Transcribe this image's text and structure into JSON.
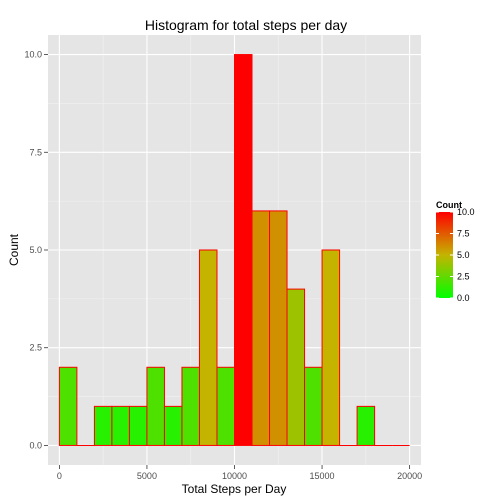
{
  "chart_data": {
    "type": "bar",
    "title": "Histogram for total steps per day",
    "xlabel": "Total Steps per Day",
    "ylabel": "Count",
    "xlim": [
      -650,
      20650
    ],
    "ylim": [
      -0.5,
      10.5
    ],
    "x_ticks": [
      0,
      5000,
      10000,
      15000,
      20000
    ],
    "x_tick_labels": [
      "0",
      "5000",
      "10000",
      "15000",
      "20000"
    ],
    "y_ticks": [
      0,
      2.5,
      5,
      7.5,
      10
    ],
    "y_tick_labels": [
      "0.0",
      "2.5",
      "5.0",
      "7.5",
      "10.0"
    ],
    "bin_width": 1000,
    "bins": [
      {
        "start": 0,
        "end": 1000,
        "count": 2
      },
      {
        "start": 1000,
        "end": 2000,
        "count": 0
      },
      {
        "start": 2000,
        "end": 3000,
        "count": 1
      },
      {
        "start": 3000,
        "end": 4000,
        "count": 1
      },
      {
        "start": 4000,
        "end": 5000,
        "count": 1
      },
      {
        "start": 5000,
        "end": 6000,
        "count": 2
      },
      {
        "start": 6000,
        "end": 7000,
        "count": 1
      },
      {
        "start": 7000,
        "end": 8000,
        "count": 2
      },
      {
        "start": 8000,
        "end": 9000,
        "count": 5
      },
      {
        "start": 9000,
        "end": 10000,
        "count": 2
      },
      {
        "start": 10000,
        "end": 11000,
        "count": 10
      },
      {
        "start": 11000,
        "end": 12000,
        "count": 6
      },
      {
        "start": 12000,
        "end": 13000,
        "count": 6
      },
      {
        "start": 13000,
        "end": 14000,
        "count": 4
      },
      {
        "start": 14000,
        "end": 15000,
        "count": 2
      },
      {
        "start": 15000,
        "end": 16000,
        "count": 5
      },
      {
        "start": 16000,
        "end": 17000,
        "count": 0
      },
      {
        "start": 17000,
        "end": 18000,
        "count": 1
      },
      {
        "start": 18000,
        "end": 19000,
        "count": 0
      },
      {
        "start": 19000,
        "end": 20000,
        "count": 0
      }
    ],
    "grid": true,
    "bar_outline_color": "#ff0000",
    "panel_background": "#e5e5e5",
    "legend": {
      "title": "Count",
      "placement": "right",
      "type": "gradient",
      "low_color": "#00ff00",
      "high_color": "#ff0000",
      "breaks": [
        0,
        2.5,
        5,
        7.5,
        10
      ],
      "labels": [
        "0.0",
        "2.5",
        "5.0",
        "7.5",
        "10.0"
      ]
    }
  }
}
